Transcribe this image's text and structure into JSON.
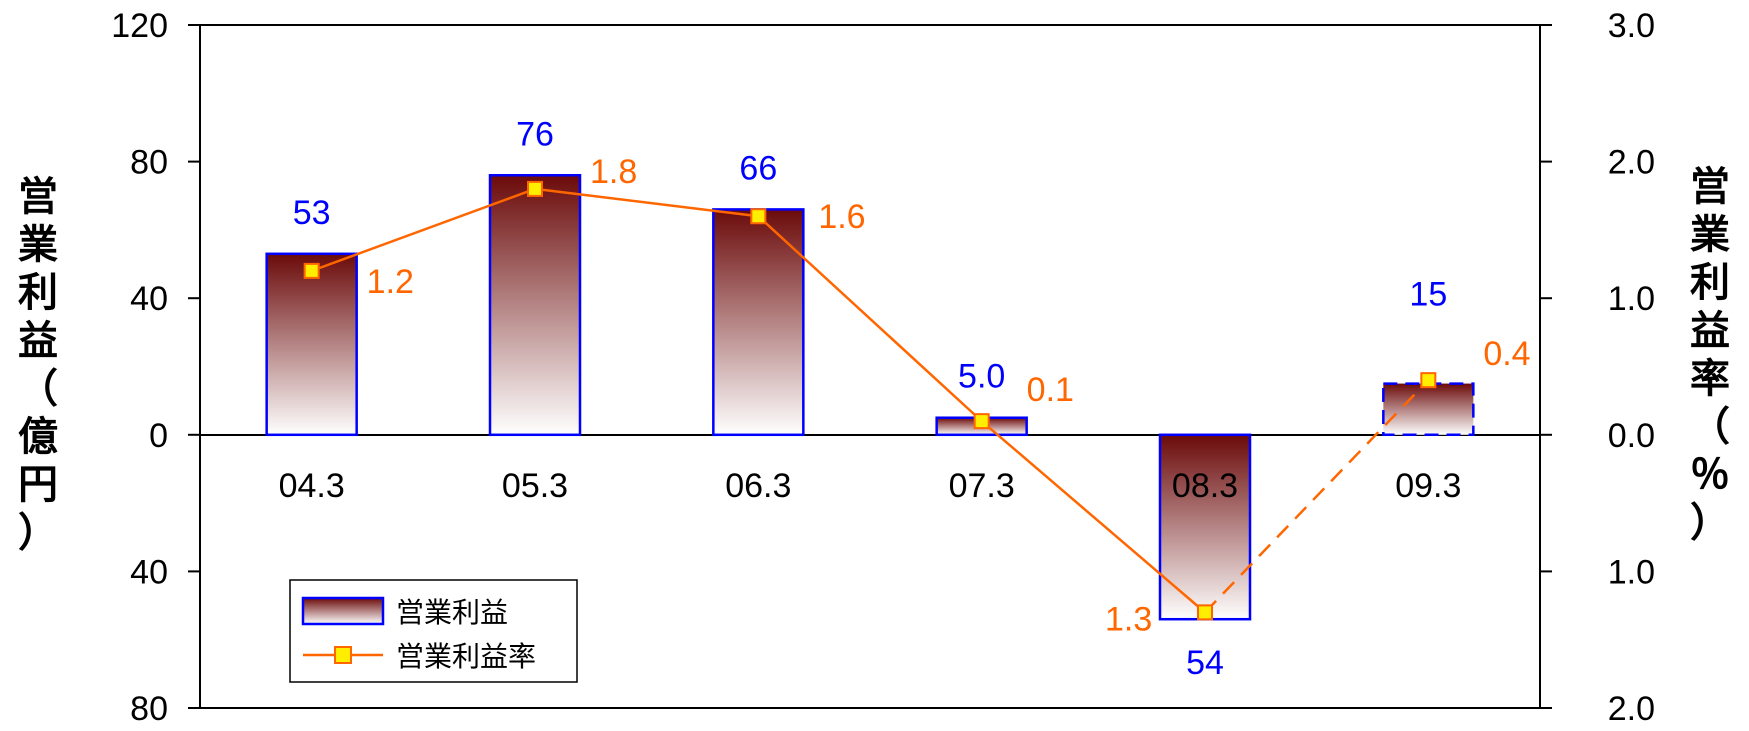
{
  "chart_data": {
    "type": "bar",
    "categories": [
      "04.3",
      "05.3",
      "06.3",
      "07.3",
      "08.3",
      "09.3"
    ],
    "series": [
      {
        "name": "営業利益",
        "kind": "bar",
        "axis": "left",
        "values": [
          53,
          76,
          66,
          5.0,
          -54,
          15
        ],
        "labels": [
          "53",
          "76",
          "66",
          "5.0",
          "54",
          "15"
        ],
        "estimated": [
          false,
          false,
          false,
          false,
          false,
          true
        ]
      },
      {
        "name": "営業利益率",
        "kind": "line",
        "axis": "right",
        "values": [
          1.2,
          1.8,
          1.6,
          0.1,
          -1.3,
          0.4
        ],
        "labels": [
          "1.2",
          "1.8",
          "1.6",
          "0.1",
          "1.3",
          "0.4"
        ],
        "estimated": [
          false,
          false,
          false,
          false,
          false,
          true
        ]
      }
    ],
    "y_left": {
      "label": "営業利益（億円）",
      "ylim": [
        -80,
        120
      ],
      "ticks": [
        120,
        80,
        40,
        0,
        -40,
        -80
      ],
      "tick_labels": [
        "120",
        "80",
        "40",
        "0",
        "40",
        "80"
      ]
    },
    "y_right": {
      "label": "営業利益率（％）",
      "ylim": [
        -2.0,
        3.0
      ],
      "ticks": [
        3.0,
        2.0,
        1.0,
        0.0,
        -1.0,
        -2.0
      ],
      "tick_labels": [
        "3.0",
        "2.0",
        "1.0",
        "0.0",
        "1.0",
        "2.0"
      ]
    },
    "legend": {
      "position": "bottom-left",
      "entries": [
        "営業利益",
        "営業利益率"
      ]
    },
    "colors": {
      "bar_fill_top": "#6b0a0a",
      "bar_fill_bottom": "#ffffff",
      "bar_border": "#0000ff",
      "bar_label": "#0000ff",
      "line": "#ff6600",
      "marker_fill": "#ffee00",
      "line_label": "#ff6600",
      "axis": "#000000"
    },
    "grid": false
  }
}
